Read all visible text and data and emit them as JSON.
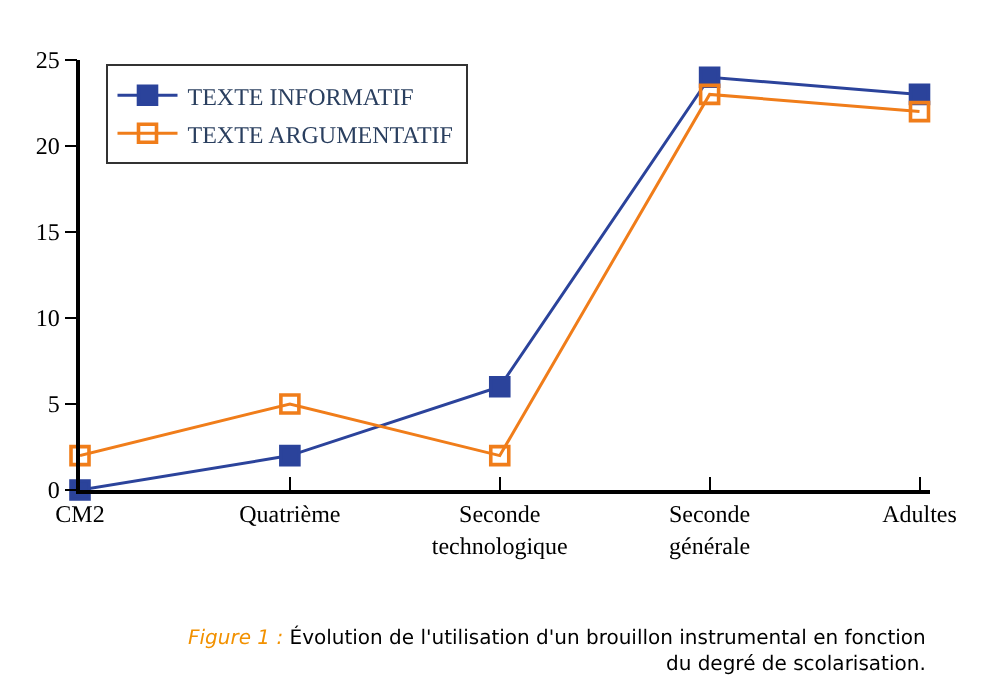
{
  "chart_data": {
    "type": "line",
    "categories": [
      "CM2",
      "Quatrième",
      "Seconde technologique",
      "Seconde générale",
      "Adultes"
    ],
    "series": [
      {
        "name": "TEXTE INFORMATIF",
        "color": "#2b439b",
        "marker": "square",
        "values": [
          0,
          2,
          6,
          24,
          23
        ]
      },
      {
        "name": "TEXTE ARGUMENTATIF",
        "color": "#f07d1a",
        "marker": "square",
        "values": [
          2,
          5,
          2,
          23,
          22
        ]
      }
    ],
    "ylim": [
      0,
      25
    ],
    "yticks": [
      0,
      5,
      10,
      15,
      20,
      25
    ],
    "legend": "top left",
    "annotations": [
      "Figure 1 :",
      "Évolution de l'utilisation d'un brouillon instrumental en fonction du degré de scolarisation."
    ]
  }
}
